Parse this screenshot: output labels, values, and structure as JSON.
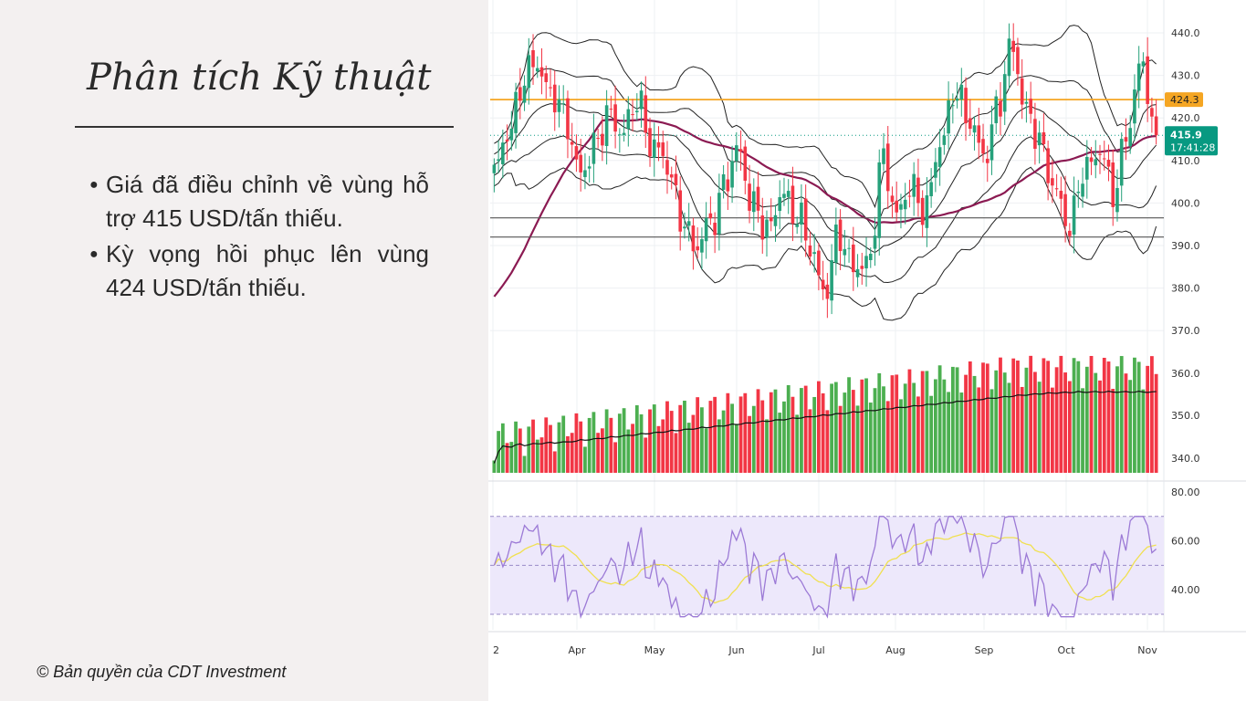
{
  "slide": {
    "title": "Phân tích Kỹ thuật",
    "bullets": [
      "Giá đã điều chỉnh về vùng hỗ trợ 415 USD/tấn thiếu.",
      "Kỳ vọng hồi phục lên vùng 424 USD/tấn thiếu."
    ],
    "copyright": "© Bản quyền của CDT Investment"
  },
  "chart_data": {
    "type": "candlestick",
    "price_axis": {
      "ylim": [
        370,
        445
      ],
      "ticks": [
        "370.0",
        "380.0",
        "390.0",
        "400.0",
        "410.0",
        "420.0",
        "430.0",
        "440.0"
      ]
    },
    "volume_axis": {
      "ticks": [
        "340.0",
        "350.0",
        "360.0"
      ]
    },
    "rsi_axis": {
      "ylim": [
        20,
        85
      ],
      "ticks": [
        "40.00",
        "60.00",
        "80.00"
      ],
      "bands": [
        30,
        50,
        70
      ]
    },
    "x_tick_labels": [
      "2",
      "Apr",
      "May",
      "Jun",
      "Jul",
      "Aug",
      "Sep",
      "Oct",
      "Nov"
    ],
    "horizontal_levels": [
      {
        "value": 424.3,
        "color": "#f5a623"
      },
      {
        "value": 396.5,
        "color": "#555555"
      },
      {
        "value": 392.0,
        "color": "#555555"
      }
    ],
    "last_price": {
      "label": "415.9",
      "countdown": "17:41:28",
      "value": 415.9,
      "color": "#089981"
    },
    "resistance_tag": {
      "label": "424.3",
      "value": 424.3,
      "color": "#f5a623"
    },
    "colors": {
      "up": "#26a17b",
      "down": "#f23645",
      "vol_up": "#4caf50",
      "vol_down": "#f23645",
      "ma_long": "#8b1a52",
      "rsi": "#9c7ad6",
      "rsi_ma": "#f0e050"
    },
    "anchors": [
      [
        "Mar",
        406
      ],
      [
        "Mar",
        418
      ],
      [
        "Mar",
        428
      ],
      [
        "Mar",
        433
      ],
      [
        "Mar",
        426
      ],
      [
        "Apr",
        418
      ],
      [
        "Apr",
        408
      ],
      [
        "Apr",
        412
      ],
      [
        "Apr",
        422
      ],
      [
        "Apr",
        416
      ],
      [
        "Apr",
        424
      ],
      [
        "May",
        414
      ],
      [
        "May",
        408
      ],
      [
        "May",
        398
      ],
      [
        "May",
        388
      ],
      [
        "May",
        396
      ],
      [
        "Jun",
        404
      ],
      [
        "Jun",
        412
      ],
      [
        "Jun",
        400
      ],
      [
        "Jun",
        392
      ],
      [
        "Jun",
        404
      ],
      [
        "Jul",
        396
      ],
      [
        "Jul",
        390
      ],
      [
        "Jul",
        379
      ],
      [
        "Jul",
        392
      ],
      [
        "Jul",
        386
      ],
      [
        "Aug",
        384
      ],
      [
        "Aug",
        412
      ],
      [
        "Aug",
        396
      ],
      [
        "Aug",
        404
      ],
      [
        "Aug",
        399
      ],
      [
        "Aug",
        413
      ],
      [
        "Sep",
        428
      ],
      [
        "Sep",
        418
      ],
      [
        "Sep",
        412
      ],
      [
        "Sep",
        422
      ],
      [
        "Sep",
        437
      ],
      [
        "Sep",
        422
      ],
      [
        "Oct",
        412
      ],
      [
        "Oct",
        404
      ],
      [
        "Oct",
        393
      ],
      [
        "Oct",
        409
      ],
      [
        "Oct",
        412
      ],
      [
        "Oct",
        402
      ],
      [
        "Nov",
        418
      ],
      [
        "Nov",
        432
      ],
      [
        "Nov",
        415.9
      ]
    ]
  }
}
